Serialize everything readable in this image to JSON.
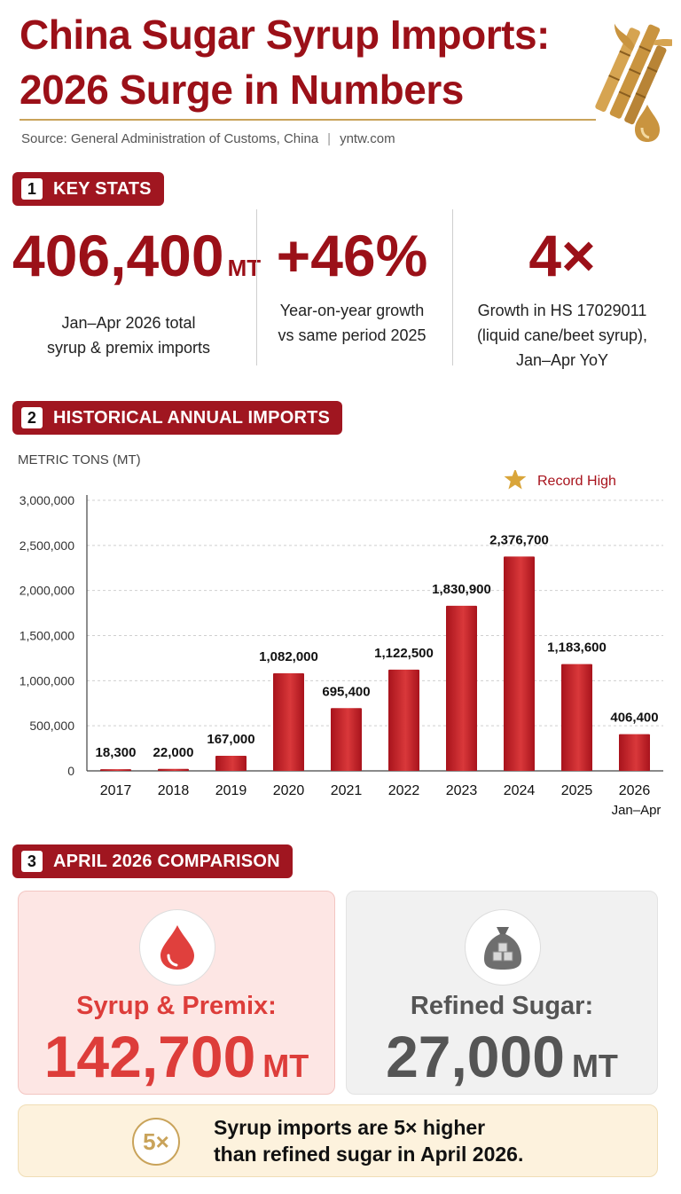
{
  "header": {
    "title_line1": "China Sugar Syrup Imports:",
    "title_line2": "2026 Surge in Numbers",
    "source": "Source: General Administration of Customs, China",
    "site": "yntw.com",
    "deco_icon": "sugarcane-syrup-drop-icon"
  },
  "sections": [
    {
      "num": "1",
      "label": "KEY STATS"
    },
    {
      "num": "2",
      "label": "HISTORICAL ANNUAL IMPORTS"
    },
    {
      "num": "3",
      "label": "APRIL 2026 COMPARISON"
    }
  ],
  "key_stats": [
    {
      "value": "406,400",
      "unit": "MT",
      "desc1": "Jan–Apr 2026 total",
      "desc2": "syrup & premix imports",
      "desc3": ""
    },
    {
      "value": "+46%",
      "unit": "",
      "desc1": "Year-on-year growth",
      "desc2": "vs same period 2025",
      "desc3": ""
    },
    {
      "value": "4×",
      "unit": "",
      "desc1": "Growth in HS 17029011",
      "desc2": "(liquid cane/beet syrup),",
      "desc3": "Jan–Apr YoY"
    }
  ],
  "chart_data": {
    "type": "bar",
    "ylabel": "METRIC TONS (MT)",
    "ylim": [
      0,
      3000000
    ],
    "yticks": [
      0,
      500000,
      1000000,
      1500000,
      2000000,
      2500000,
      3000000
    ],
    "ytick_labels": [
      "0",
      "500,000",
      "1,000,000",
      "1,500,000",
      "2,000,000",
      "2,500,000",
      "3,000,000"
    ],
    "categories": [
      "2017",
      "2018",
      "2019",
      "2020",
      "2021",
      "2022",
      "2023",
      "2024",
      "2025",
      "2026"
    ],
    "category_sublabels": [
      "",
      "",
      "",
      "",
      "",
      "",
      "",
      "",
      "",
      "Jan–Apr"
    ],
    "values": [
      18300,
      22000,
      167000,
      1082000,
      695400,
      1122500,
      1830900,
      2376700,
      1183600,
      406400
    ],
    "value_labels": [
      "18,300",
      "22,000",
      "167,000",
      "1,082,000",
      "695,400",
      "1,122,500",
      "1,830,900",
      "2,376,700",
      "1,183,600",
      "406,400"
    ],
    "legend": {
      "label": "Record High",
      "icon": "star-icon",
      "position": "top-right"
    },
    "grid": true,
    "colors": {
      "bar": "#a8131c",
      "bar_light": "#d9383a",
      "star": "#d9a53a"
    }
  },
  "comparison": {
    "syrup": {
      "label": "Syrup & Premix:",
      "value": "142,700",
      "unit": "MT",
      "icon": "blood-drop-icon"
    },
    "sugar": {
      "label": "Refined Sugar:",
      "value": "27,000",
      "unit": "MT",
      "icon": "sugar-sack-icon"
    }
  },
  "note": {
    "badge": "5×",
    "line1": "Syrup imports are 5× higher",
    "line2": "than refined sugar in April 2026."
  }
}
